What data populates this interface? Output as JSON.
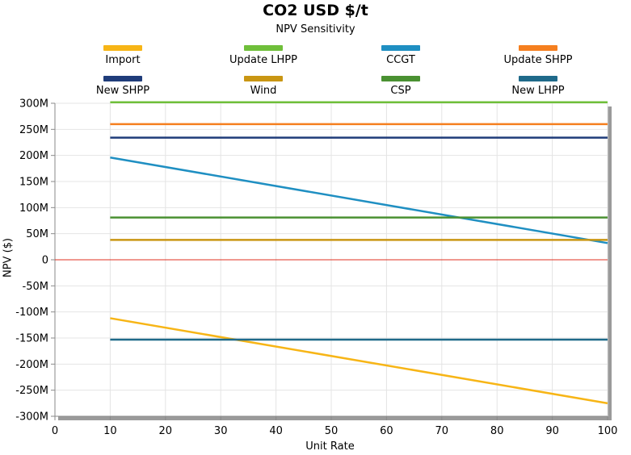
{
  "chart_data": {
    "type": "line",
    "title": "CO2 USD $/t",
    "subtitle": "NPV Sensitivity",
    "xlabel": "Unit Rate",
    "ylabel": "NPV ($)",
    "xlim": [
      0,
      100
    ],
    "ylim": [
      -300,
      300
    ],
    "x_ticks": [
      0,
      10,
      20,
      30,
      40,
      50,
      60,
      70,
      80,
      90,
      100
    ],
    "x_tick_labels": [
      "0",
      "10",
      "20",
      "30",
      "40",
      "50",
      "60",
      "70",
      "80",
      "90",
      "100"
    ],
    "y_ticks": [
      300,
      250,
      200,
      150,
      100,
      50,
      0,
      -50,
      -100,
      -150,
      -200,
      -250,
      -300
    ],
    "y_tick_labels": [
      "300M",
      "250M",
      "200M",
      "150M",
      "100M",
      "50M",
      "0",
      "-50M",
      "-100M",
      "-150M",
      "-200M",
      "-250M",
      "-300M"
    ],
    "x": [
      10,
      100
    ],
    "series": [
      {
        "name": "Import",
        "color": "#f7b516",
        "values": [
          -112,
          -275
        ]
      },
      {
        "name": "Update LHPP",
        "color": "#6fbf3a",
        "values": [
          302,
          302
        ]
      },
      {
        "name": "CCGT",
        "color": "#1f8fc2",
        "values": [
          196,
          32
        ]
      },
      {
        "name": "Update SHPP",
        "color": "#f57f1f",
        "values": [
          260,
          260
        ]
      },
      {
        "name": "New SHPP",
        "color": "#1f3c7a",
        "values": [
          234,
          234
        ]
      },
      {
        "name": "Wind",
        "color": "#c99613",
        "values": [
          38,
          38
        ]
      },
      {
        "name": "CSP",
        "color": "#4a9132",
        "values": [
          81,
          81
        ]
      },
      {
        "name": "New LHPP",
        "color": "#1f6a8a",
        "values": [
          -153,
          -153
        ]
      }
    ],
    "zero_line_color": "#e03020",
    "grid": true,
    "legend_position": "top"
  }
}
